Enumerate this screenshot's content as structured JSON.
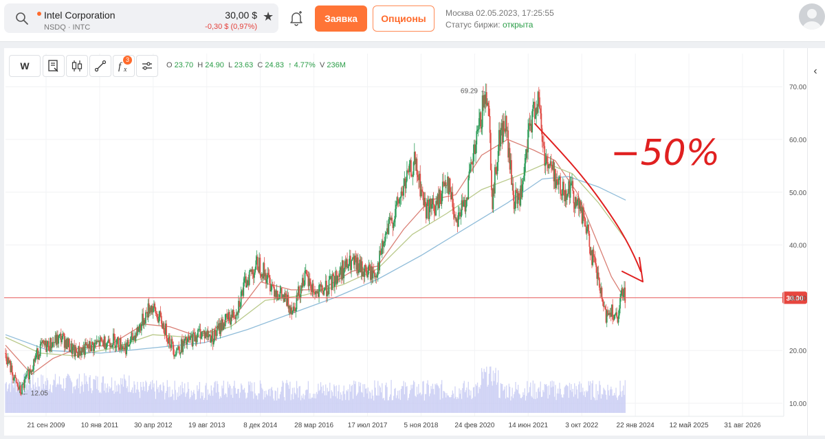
{
  "header": {
    "company_name": "Intel Corporation",
    "exchange_ticker": "NSDQ · INTC",
    "price": "30,00 $",
    "change": "-0,30 $ (0,97%)",
    "order_button": "Заявка",
    "options_button": "Опционы",
    "datetime": "Москва 02.05.2023, 17:25:55",
    "exchange_status_label": "Статус биржи:",
    "exchange_status_value": "открыта"
  },
  "toolbar": {
    "interval": "W",
    "indicator_count": "3"
  },
  "ohlc": {
    "o_label": "O",
    "o": "23.70",
    "h_label": "H",
    "h": "24.90",
    "l_label": "L",
    "l": "23.63",
    "c_label": "C",
    "c": "24.83",
    "change": "↑ 4.77%",
    "v_label": "V",
    "v": "236M"
  },
  "colors": {
    "up": "#2e9d5a",
    "down": "#e0504a",
    "price_line": "#e95a5a",
    "ma_fast": "#d97e74",
    "ma_mid": "#b9c98a",
    "ma_slow": "#8fbcd9",
    "volume": "#c9cdf3",
    "annotation": "#e02020"
  },
  "chart_data": {
    "type": "candlestick",
    "title": "",
    "xlabel": "",
    "ylabel": "",
    "ylim": [
      8,
      72
    ],
    "y_ticks": [
      "70.00",
      "60.00",
      "50.00",
      "40.00",
      "30.00",
      "20.00",
      "10.00"
    ],
    "x_ticks": [
      "21 сен 2009",
      "10 янв 2011",
      "30 апр 2012",
      "19 авг 2013",
      "8 дек 2014",
      "28 мар 2016",
      "17 июл 2017",
      "5 ноя 2018",
      "24 фев 2020",
      "14 июн 2021",
      "3 окт 2022",
      "22 янв 2024",
      "12 май 2025",
      "31 авг 2026"
    ],
    "current_price_label": "30.00",
    "current_price": 30.0,
    "max_label": "69.29",
    "max_value": 69.29,
    "min_label": "12.05",
    "min_value": 12.05,
    "annotation_text": "−50%",
    "price_path": [
      {
        "x": 2009.0,
        "y": 19.5
      },
      {
        "x": 2009.2,
        "y": 14.5
      },
      {
        "x": 2009.35,
        "y": 12.05
      },
      {
        "x": 2009.6,
        "y": 17.0
      },
      {
        "x": 2009.8,
        "y": 20.5
      },
      {
        "x": 2010.0,
        "y": 21.0
      },
      {
        "x": 2010.3,
        "y": 22.5
      },
      {
        "x": 2010.6,
        "y": 19.5
      },
      {
        "x": 2010.9,
        "y": 20.5
      },
      {
        "x": 2011.2,
        "y": 21.5
      },
      {
        "x": 2011.5,
        "y": 22.0
      },
      {
        "x": 2011.8,
        "y": 20.5
      },
      {
        "x": 2012.1,
        "y": 24.5
      },
      {
        "x": 2012.35,
        "y": 28.5
      },
      {
        "x": 2012.6,
        "y": 25.5
      },
      {
        "x": 2012.9,
        "y": 20.0
      },
      {
        "x": 2013.2,
        "y": 21.5
      },
      {
        "x": 2013.5,
        "y": 23.5
      },
      {
        "x": 2013.8,
        "y": 22.5
      },
      {
        "x": 2014.0,
        "y": 25.0
      },
      {
        "x": 2014.3,
        "y": 27.0
      },
      {
        "x": 2014.6,
        "y": 34.0
      },
      {
        "x": 2014.85,
        "y": 36.5
      },
      {
        "x": 2015.1,
        "y": 33.0
      },
      {
        "x": 2015.4,
        "y": 30.0
      },
      {
        "x": 2015.65,
        "y": 28.0
      },
      {
        "x": 2015.9,
        "y": 34.0
      },
      {
        "x": 2016.2,
        "y": 30.5
      },
      {
        "x": 2016.5,
        "y": 32.5
      },
      {
        "x": 2016.8,
        "y": 35.5
      },
      {
        "x": 2017.0,
        "y": 36.5
      },
      {
        "x": 2017.3,
        "y": 35.0
      },
      {
        "x": 2017.55,
        "y": 34.5
      },
      {
        "x": 2017.8,
        "y": 42.0
      },
      {
        "x": 2018.0,
        "y": 46.0
      },
      {
        "x": 2018.25,
        "y": 52.0
      },
      {
        "x": 2018.45,
        "y": 55.5
      },
      {
        "x": 2018.7,
        "y": 47.0
      },
      {
        "x": 2018.95,
        "y": 47.0
      },
      {
        "x": 2019.2,
        "y": 53.0
      },
      {
        "x": 2019.4,
        "y": 45.0
      },
      {
        "x": 2019.6,
        "y": 47.5
      },
      {
        "x": 2019.85,
        "y": 58.0
      },
      {
        "x": 2020.05,
        "y": 67.0
      },
      {
        "x": 2020.15,
        "y": 69.29
      },
      {
        "x": 2020.25,
        "y": 48.0
      },
      {
        "x": 2020.4,
        "y": 60.0
      },
      {
        "x": 2020.55,
        "y": 63.0
      },
      {
        "x": 2020.75,
        "y": 48.0
      },
      {
        "x": 2020.95,
        "y": 50.0
      },
      {
        "x": 2021.1,
        "y": 62.0
      },
      {
        "x": 2021.3,
        "y": 68.0
      },
      {
        "x": 2021.45,
        "y": 57.0
      },
      {
        "x": 2021.65,
        "y": 54.0
      },
      {
        "x": 2021.85,
        "y": 50.0
      },
      {
        "x": 2022.05,
        "y": 51.0
      },
      {
        "x": 2022.2,
        "y": 48.0
      },
      {
        "x": 2022.4,
        "y": 44.0
      },
      {
        "x": 2022.55,
        "y": 38.0
      },
      {
        "x": 2022.7,
        "y": 33.0
      },
      {
        "x": 2022.85,
        "y": 26.5
      },
      {
        "x": 2023.0,
        "y": 28.0
      },
      {
        "x": 2023.15,
        "y": 25.0
      },
      {
        "x": 2023.25,
        "y": 32.0
      },
      {
        "x": 2023.33,
        "y": 30.0
      }
    ],
    "series": [
      {
        "key": "ma_fast",
        "values": [
          {
            "x": 2009.0,
            "y": 21.0
          },
          {
            "x": 2009.6,
            "y": 15.5
          },
          {
            "x": 2010.1,
            "y": 18.5
          },
          {
            "x": 2010.7,
            "y": 20.5
          },
          {
            "x": 2011.4,
            "y": 21.0
          },
          {
            "x": 2012.2,
            "y": 25.0
          },
          {
            "x": 2012.8,
            "y": 24.5
          },
          {
            "x": 2013.5,
            "y": 22.5
          },
          {
            "x": 2014.3,
            "y": 26.5
          },
          {
            "x": 2014.9,
            "y": 33.0
          },
          {
            "x": 2015.6,
            "y": 31.5
          },
          {
            "x": 2016.3,
            "y": 31.5
          },
          {
            "x": 2017.0,
            "y": 35.0
          },
          {
            "x": 2017.6,
            "y": 36.0
          },
          {
            "x": 2018.2,
            "y": 43.0
          },
          {
            "x": 2018.8,
            "y": 48.5
          },
          {
            "x": 2019.4,
            "y": 49.5
          },
          {
            "x": 2020.0,
            "y": 57.0
          },
          {
            "x": 2020.6,
            "y": 60.0
          },
          {
            "x": 2021.2,
            "y": 58.0
          },
          {
            "x": 2021.7,
            "y": 56.0
          },
          {
            "x": 2022.2,
            "y": 50.0
          },
          {
            "x": 2022.6,
            "y": 42.0
          },
          {
            "x": 2023.0,
            "y": 34.0
          },
          {
            "x": 2023.33,
            "y": 29.5
          }
        ]
      },
      {
        "key": "ma_mid",
        "values": [
          {
            "x": 2009.0,
            "y": 22.5
          },
          {
            "x": 2009.8,
            "y": 19.5
          },
          {
            "x": 2010.6,
            "y": 19.0
          },
          {
            "x": 2011.5,
            "y": 20.5
          },
          {
            "x": 2012.4,
            "y": 23.0
          },
          {
            "x": 2013.3,
            "y": 22.5
          },
          {
            "x": 2014.2,
            "y": 24.5
          },
          {
            "x": 2015.0,
            "y": 29.5
          },
          {
            "x": 2015.9,
            "y": 30.5
          },
          {
            "x": 2016.8,
            "y": 32.5
          },
          {
            "x": 2017.6,
            "y": 35.5
          },
          {
            "x": 2018.4,
            "y": 42.0
          },
          {
            "x": 2019.2,
            "y": 46.0
          },
          {
            "x": 2020.0,
            "y": 50.5
          },
          {
            "x": 2020.8,
            "y": 53.0
          },
          {
            "x": 2021.5,
            "y": 55.5
          },
          {
            "x": 2022.1,
            "y": 53.5
          },
          {
            "x": 2022.7,
            "y": 48.0
          },
          {
            "x": 2023.33,
            "y": 41.0
          }
        ]
      },
      {
        "key": "ma_slow",
        "values": [
          {
            "x": 2009.0,
            "y": 23.0
          },
          {
            "x": 2010.0,
            "y": 20.0
          },
          {
            "x": 2011.2,
            "y": 19.5
          },
          {
            "x": 2012.4,
            "y": 20.5
          },
          {
            "x": 2013.6,
            "y": 21.5
          },
          {
            "x": 2014.6,
            "y": 24.0
          },
          {
            "x": 2015.6,
            "y": 27.0
          },
          {
            "x": 2016.6,
            "y": 30.0
          },
          {
            "x": 2017.6,
            "y": 33.5
          },
          {
            "x": 2018.6,
            "y": 38.0
          },
          {
            "x": 2019.6,
            "y": 43.0
          },
          {
            "x": 2020.6,
            "y": 48.0
          },
          {
            "x": 2021.4,
            "y": 52.5
          },
          {
            "x": 2022.0,
            "y": 53.0
          },
          {
            "x": 2022.7,
            "y": 51.0
          },
          {
            "x": 2023.33,
            "y": 48.5
          }
        ]
      }
    ]
  }
}
